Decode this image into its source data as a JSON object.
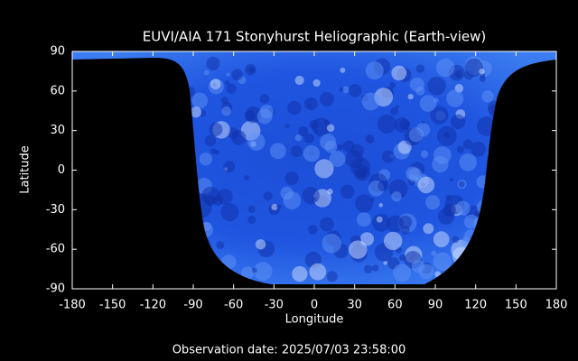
{
  "chart_data": {
    "type": "map",
    "title": "EUVI/AIA 171 Stonyhurst Heliographic (Earth-view)",
    "xlabel": "Longitude",
    "ylabel": "Latitude",
    "xlim": [
      -180,
      180
    ],
    "ylim": [
      -90,
      90
    ],
    "xticks": [
      -180,
      -150,
      -120,
      -90,
      -60,
      -30,
      0,
      30,
      60,
      90,
      120,
      150,
      180
    ],
    "yticks": [
      -90,
      -60,
      -30,
      0,
      30,
      60,
      90
    ],
    "annotation": "Observation date: 2025/07/03 23:58:00"
  }
}
